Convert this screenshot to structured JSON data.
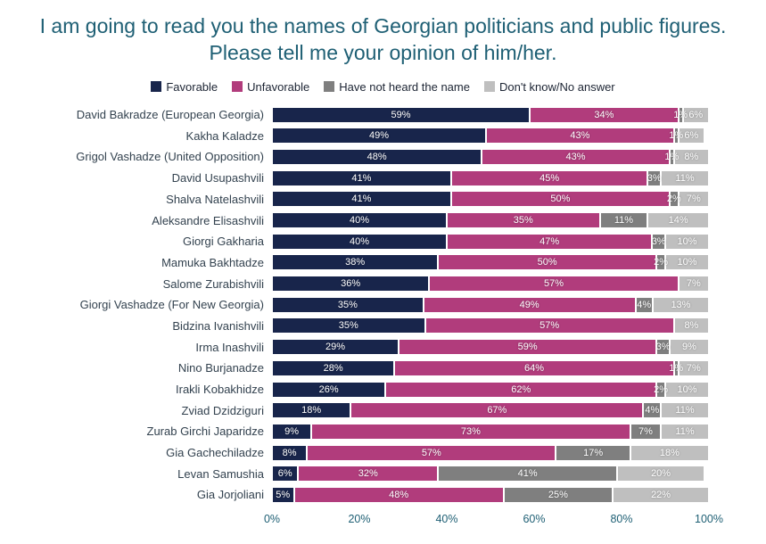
{
  "chart_data": {
    "type": "bar",
    "stacked": true,
    "orientation": "horizontal",
    "title": "I am going to read you the names of Georgian politicians and public figures. Please tell me your opinion of him/her.",
    "legend_position": "top",
    "grid": false,
    "xlim": [
      0,
      100
    ],
    "x_ticks": [
      "0%",
      "20%",
      "40%",
      "60%",
      "80%",
      "100%"
    ],
    "legend": [
      {
        "key": "favorable",
        "label": "Favorable",
        "color": "#18254B"
      },
      {
        "key": "unfavorable",
        "label": "Unfavorable",
        "color": "#B13C7C"
      },
      {
        "key": "have-not-heard",
        "label": "Have not heard the name",
        "color": "#7F7F7F"
      },
      {
        "key": "dont-know",
        "label": "Don't know/No answer",
        "color": "#BFBFBF"
      }
    ],
    "categories": [
      "David Bakradze (European Georgia)",
      "Kakha Kaladze",
      "Grigol Vashadze (United Opposition)",
      "David Usupashvili",
      "Shalva Natelashvili",
      "Aleksandre Elisashvili",
      "Giorgi Gakharia",
      "Mamuka Bakhtadze",
      "Salome Zurabishvili",
      "Giorgi Vashadze (For New Georgia)",
      "Bidzina Ivanishvili",
      "Irma Inashvili",
      "Nino Burjanadze",
      "Irakli Kobakhidze",
      "Zviad Dzidziguri",
      "Zurab Girchi Japaridze",
      "Gia Gachechiladze",
      "Levan Samushia",
      "Gia Jorjoliani"
    ],
    "series": [
      {
        "key": "favorable",
        "name": "Favorable",
        "values": [
          59,
          49,
          48,
          41,
          41,
          40,
          40,
          38,
          36,
          35,
          35,
          29,
          28,
          26,
          18,
          9,
          8,
          6,
          5
        ]
      },
      {
        "key": "unfavorable",
        "name": "Unfavorable",
        "values": [
          34,
          43,
          43,
          45,
          50,
          35,
          47,
          50,
          57,
          49,
          57,
          59,
          64,
          62,
          67,
          73,
          57,
          32,
          48
        ]
      },
      {
        "key": "have-not-heard",
        "name": "Have not heard the name",
        "values": [
          1,
          1,
          1,
          3,
          2,
          11,
          3,
          2,
          0,
          4,
          0,
          3,
          1,
          2,
          4,
          7,
          17,
          41,
          25
        ]
      },
      {
        "key": "dont-know",
        "name": "Don't know/No answer",
        "values": [
          6,
          6,
          8,
          11,
          7,
          14,
          10,
          10,
          7,
          13,
          8,
          9,
          7,
          10,
          11,
          11,
          18,
          20,
          22
        ]
      }
    ]
  },
  "colors": {
    "title_text": "#1E5F74",
    "axis_text": "#1E5F74",
    "category_text": "#33424F",
    "background": "#FFFFFF"
  }
}
